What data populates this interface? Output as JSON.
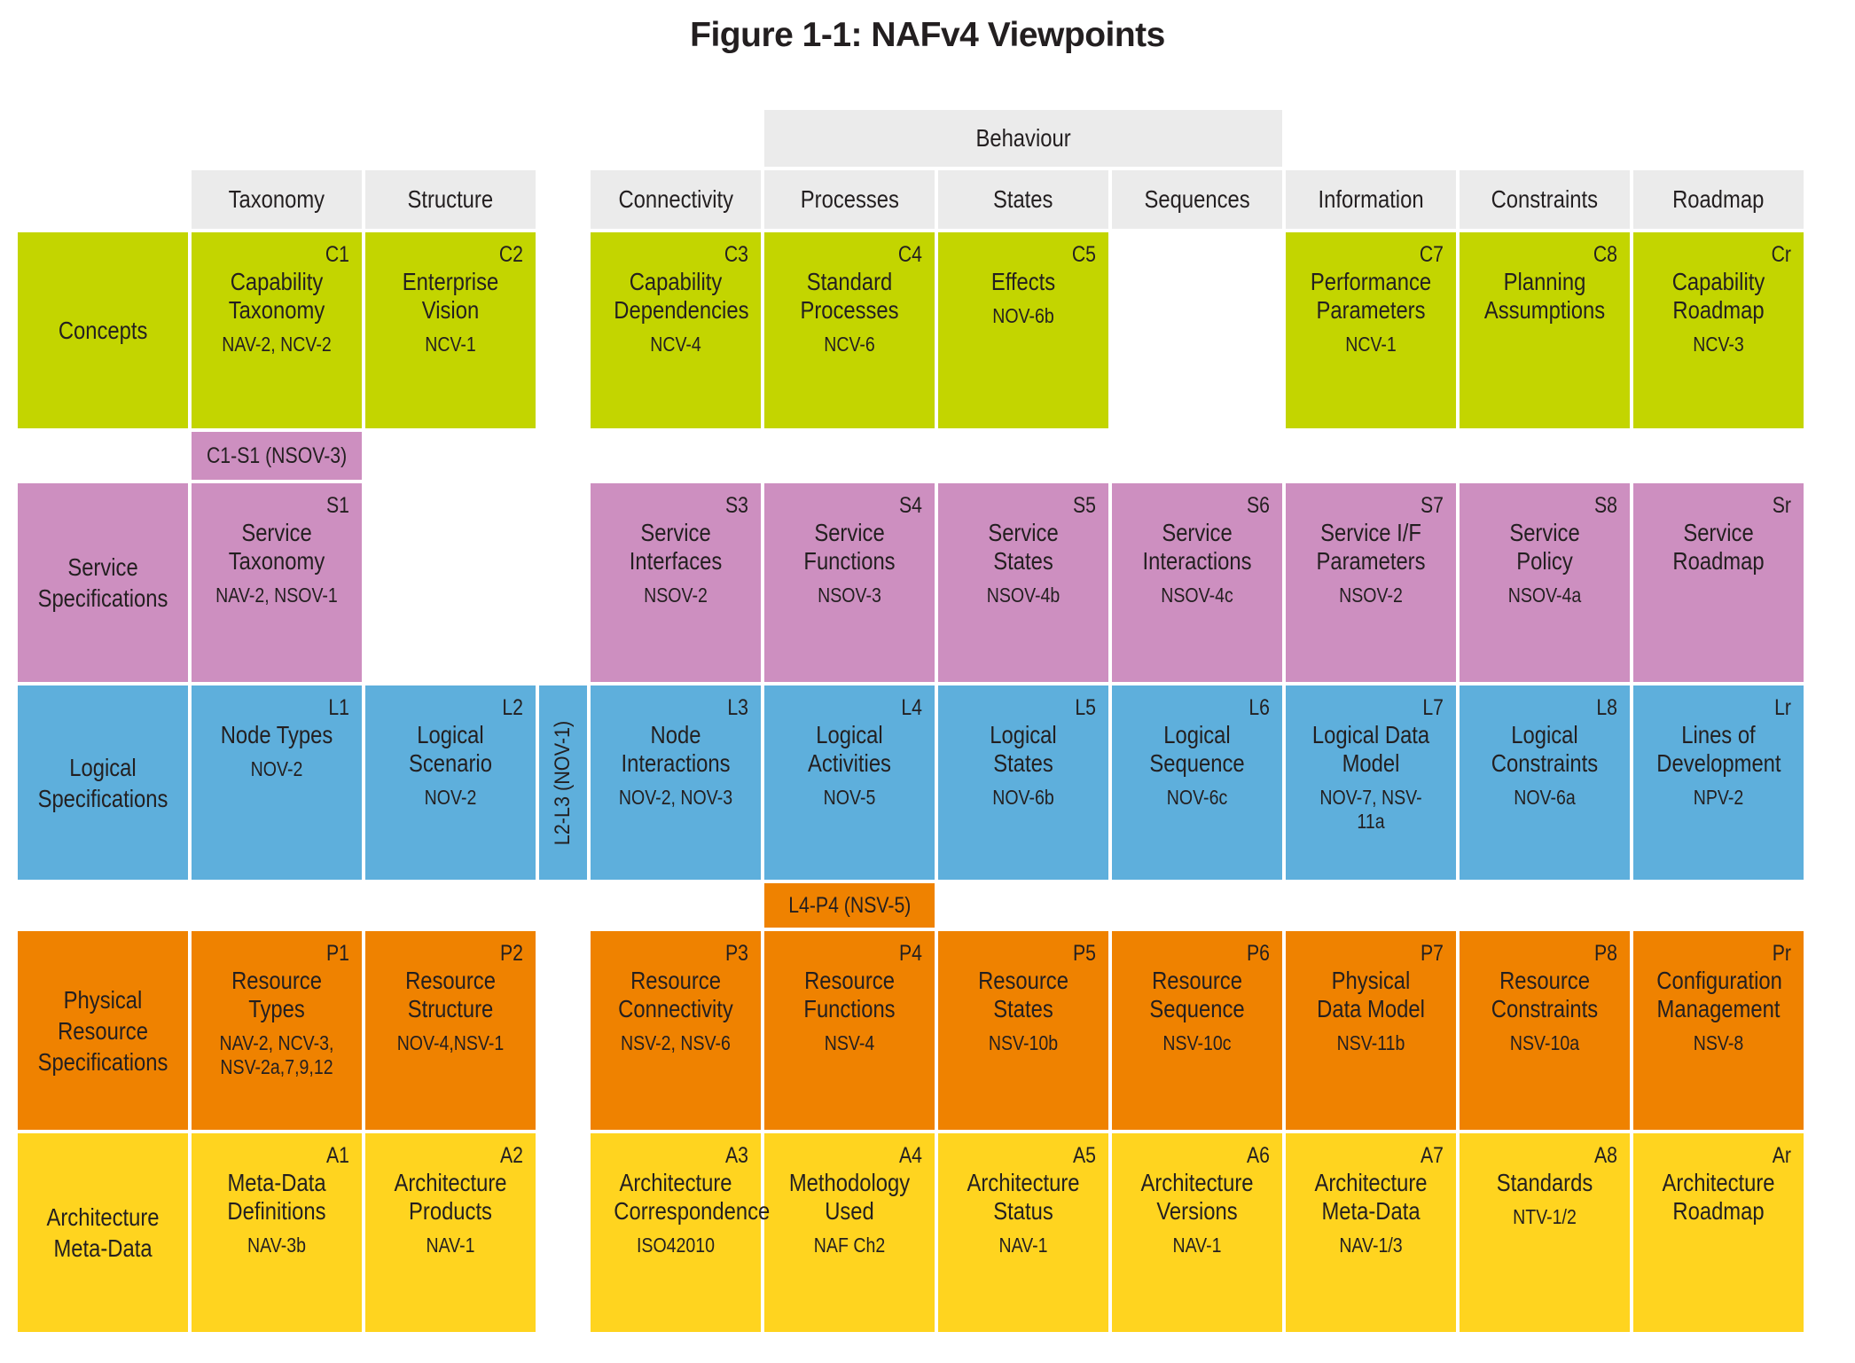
{
  "title": "Figure 1-1: NAFv4 Viewpoints",
  "colors": {
    "concepts": "#c3d500",
    "service": "#cd8fc0",
    "logical": "#5eafdc",
    "physical": "#ef8200",
    "meta": "#ffd41f",
    "header_bg": "#ebebeb",
    "text": "#231f20"
  },
  "grid": {
    "behaviour_label": "Behaviour",
    "column_headers": [
      "Taxonomy",
      "Structure",
      "Connectivity",
      "Processes",
      "States",
      "Sequences",
      "Information",
      "Constraints",
      "Roadmap"
    ],
    "rows": [
      {
        "key": "concepts",
        "label": "Concepts",
        "cells": [
          {
            "col": 0,
            "code": "C1",
            "name": "Capability Taxonomy",
            "sub": "NAV-2, NCV-2"
          },
          {
            "col": 1,
            "code": "C2",
            "name": "Enterprise Vision",
            "sub": "NCV-1"
          },
          {
            "col": 2,
            "code": "C3",
            "name": "Capability Dependencies",
            "sub": "NCV-4"
          },
          {
            "col": 3,
            "code": "C4",
            "name": "Standard Processes",
            "sub": "NCV-6"
          },
          {
            "col": 4,
            "code": "C5",
            "name": "Effects",
            "sub": "NOV-6b"
          },
          {
            "col": 6,
            "code": "C7",
            "name": "Performance Parameters",
            "sub": "NCV-1"
          },
          {
            "col": 7,
            "code": "C8",
            "name": "Planning Assumptions"
          },
          {
            "col": 8,
            "code": "Cr",
            "name": "Capability Roadmap",
            "sub": "NCV-3"
          }
        ]
      },
      {
        "key": "service",
        "label": "Service Specifications",
        "cells": [
          {
            "col": 0,
            "code": "S1",
            "name": "Service Taxonomy",
            "sub": "NAV-2, NSOV-1"
          },
          {
            "col": 2,
            "code": "S3",
            "name": "Service Interfaces",
            "sub": "NSOV-2"
          },
          {
            "col": 3,
            "code": "S4",
            "name": "Service Functions",
            "sub": "NSOV-3"
          },
          {
            "col": 4,
            "code": "S5",
            "name": "Service States",
            "sub": "NSOV-4b"
          },
          {
            "col": 5,
            "code": "S6",
            "name": "Service Interactions",
            "sub": "NSOV-4c"
          },
          {
            "col": 6,
            "code": "S7",
            "name": "Service I/F Parameters",
            "sub": "NSOV-2"
          },
          {
            "col": 7,
            "code": "S8",
            "name": "Service Policy",
            "sub": "NSOV-4a"
          },
          {
            "col": 8,
            "code": "Sr",
            "name": "Service Roadmap"
          }
        ]
      },
      {
        "key": "logical",
        "label": "Logical Specifications",
        "cells": [
          {
            "col": 0,
            "code": "L1",
            "name": "Node Types",
            "sub": "NOV-2"
          },
          {
            "col": 1,
            "code": "L2",
            "name": "Logical Scenario",
            "sub": "NOV-2"
          },
          {
            "col": 2,
            "code": "L3",
            "name": "Node Interactions",
            "sub": "NOV-2, NOV-3"
          },
          {
            "col": 3,
            "code": "L4",
            "name": "Logical Activities",
            "sub": "NOV-5"
          },
          {
            "col": 4,
            "code": "L5",
            "name": "Logical States",
            "sub": "NOV-6b"
          },
          {
            "col": 5,
            "code": "L6",
            "name": "Logical Sequence",
            "sub": "NOV-6c"
          },
          {
            "col": 6,
            "code": "L7",
            "name": "Logical Data Model",
            "sub": "NOV-7, NSV-11a"
          },
          {
            "col": 7,
            "code": "L8",
            "name": "Logical Constraints",
            "sub": "NOV-6a"
          },
          {
            "col": 8,
            "code": "Lr",
            "name": "Lines of Development",
            "sub": "NPV-2"
          }
        ]
      },
      {
        "key": "physical",
        "label": "Physical Resource Specifications",
        "cells": [
          {
            "col": 0,
            "code": "P1",
            "name": "Resource Types",
            "sub": "NAV-2, NCV-3, NSV-2a,7,9,12"
          },
          {
            "col": 1,
            "code": "P2",
            "name": "Resource Structure",
            "sub": "NOV-4,NSV-1"
          },
          {
            "col": 2,
            "code": "P3",
            "name": "Resource Connectivity",
            "sub": "NSV-2, NSV-6"
          },
          {
            "col": 3,
            "code": "P4",
            "name": "Resource Functions",
            "sub": "NSV-4"
          },
          {
            "col": 4,
            "code": "P5",
            "name": "Resource States",
            "sub": "NSV-10b"
          },
          {
            "col": 5,
            "code": "P6",
            "name": "Resource Sequence",
            "sub": "NSV-10c"
          },
          {
            "col": 6,
            "code": "P7",
            "name": "Physical Data Model",
            "sub": "NSV-11b"
          },
          {
            "col": 7,
            "code": "P8",
            "name": "Resource Constraints",
            "sub": "NSV-10a"
          },
          {
            "col": 8,
            "code": "Pr",
            "name": "Configuration Management",
            "sub": "NSV-8"
          }
        ]
      },
      {
        "key": "meta",
        "label": "Architecture Meta-Data",
        "cells": [
          {
            "col": 0,
            "code": "A1",
            "name": "Meta-Data Definitions",
            "sub": "NAV-3b"
          },
          {
            "col": 1,
            "code": "A2",
            "name": "Architecture Products",
            "sub": "NAV-1"
          },
          {
            "col": 2,
            "code": "A3",
            "name": "Architecture Correspondence",
            "sub": "ISO42010"
          },
          {
            "col": 3,
            "code": "A4",
            "name": "Methodology Used",
            "sub": "NAF Ch2"
          },
          {
            "col": 4,
            "code": "A5",
            "name": "Architecture Status",
            "sub": "NAV-1"
          },
          {
            "col": 5,
            "code": "A6",
            "name": "Architecture Versions",
            "sub": "NAV-1"
          },
          {
            "col": 6,
            "code": "A7",
            "name": "Architecture Meta-Data",
            "sub": "NAV-1/3"
          },
          {
            "col": 7,
            "code": "A8",
            "name": "Standards",
            "sub": "NTV-1/2"
          },
          {
            "col": 8,
            "code": "Ar",
            "name": "Architecture Roadmap"
          }
        ]
      }
    ],
    "connectors": [
      {
        "id": "c1-s1",
        "label": "C1-S1 (NSOV-3)",
        "color": "service"
      },
      {
        "id": "l2-l3",
        "label": "L2-L3 (NOV-1)",
        "color": "logical"
      },
      {
        "id": "l4-p4",
        "label": "L4-P4 (NSV-5)",
        "color": "physical"
      }
    ]
  }
}
